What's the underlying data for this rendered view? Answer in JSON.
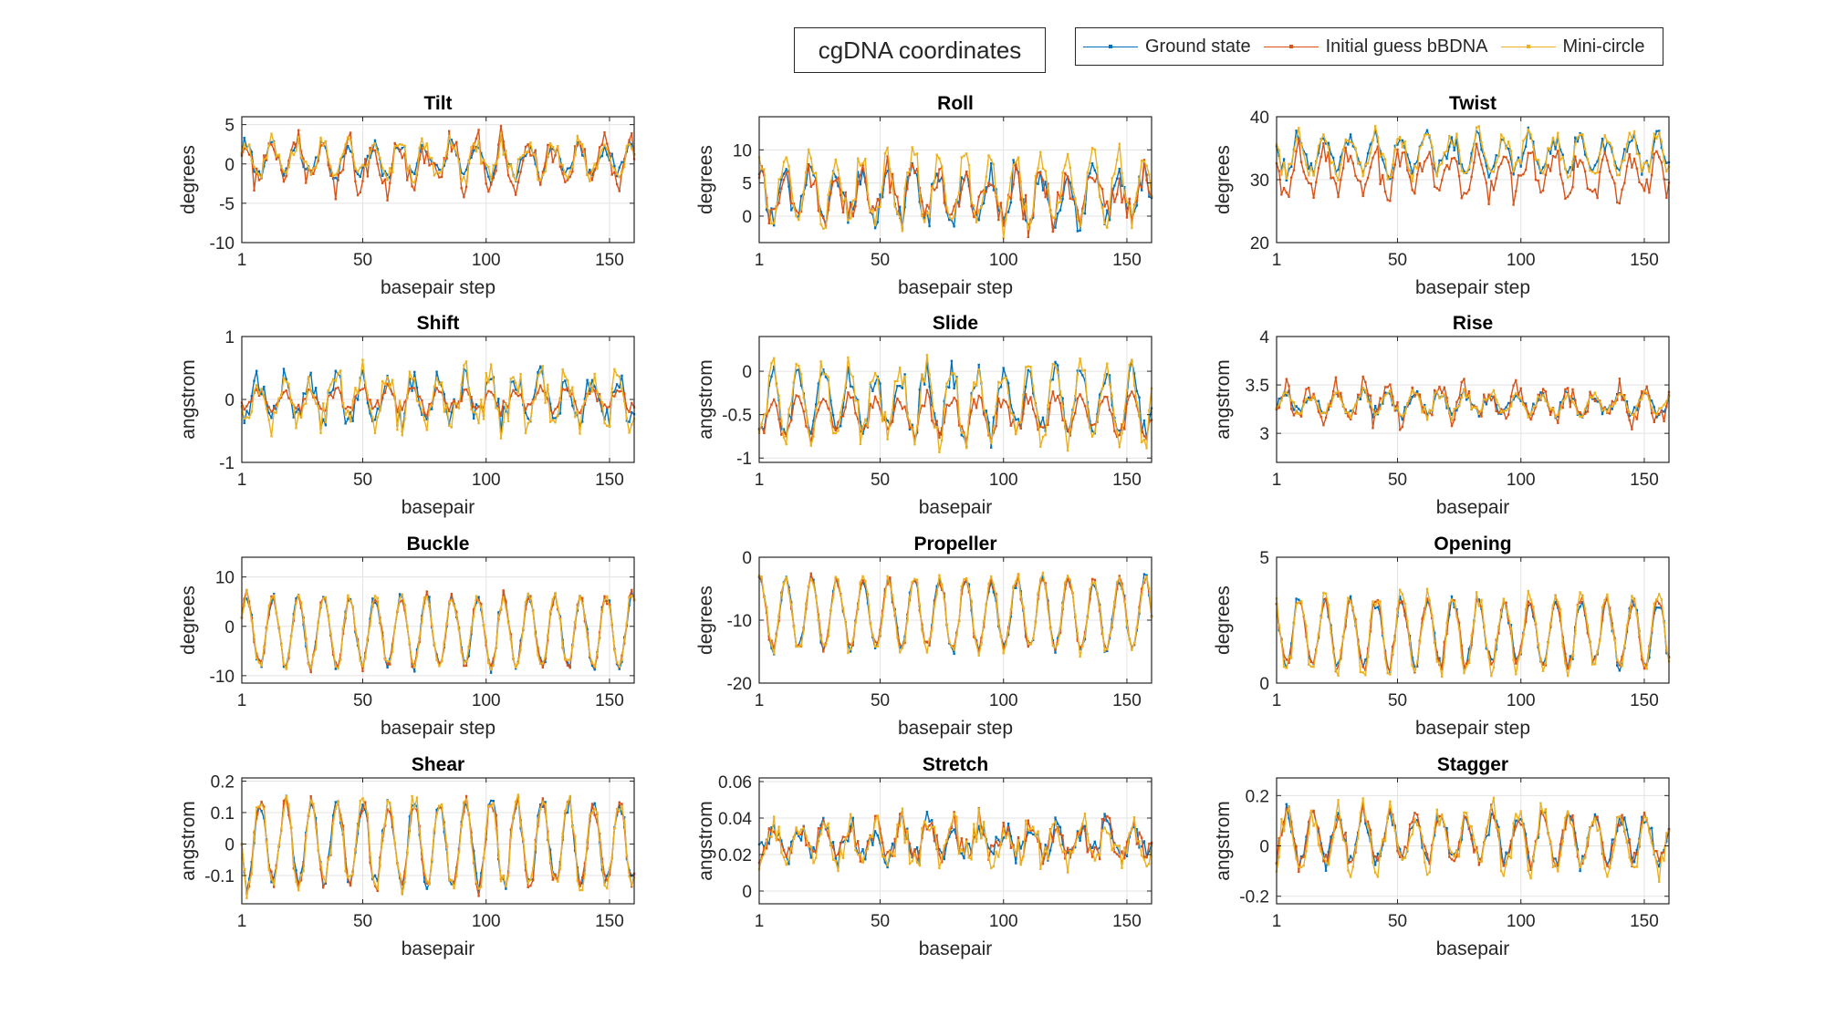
{
  "figure": {
    "title": "cgDNA coordinates",
    "legend": [
      {
        "label": "Ground state",
        "color": "#0072BD"
      },
      {
        "label": "Initial guess bBDNA",
        "color": "#D95319"
      },
      {
        "label": "Mini-circle",
        "color": "#EDB120"
      }
    ]
  },
  "chart_data": [
    {
      "type": "line",
      "title": "Tilt",
      "xlabel": "basepair step",
      "ylabel": "degrees",
      "xlim": [
        1,
        160
      ],
      "ylim": [
        -10,
        6
      ],
      "xticks": [
        1,
        50,
        100,
        150
      ],
      "yticks": [
        -10,
        -5,
        0,
        5
      ],
      "yticklabels": [
        "-10",
        "-5",
        "0",
        "5"
      ],
      "grid": true,
      "series": [
        {
          "name": "Ground state",
          "center": 0.5,
          "amp": 1.8,
          "period": 10.4,
          "noise": 1.0
        },
        {
          "name": "Initial guess bBDNA",
          "center": 0.0,
          "amp": 2.5,
          "period": 10.4,
          "noise": 2.0
        },
        {
          "name": "Mini-circle",
          "center": 0.5,
          "amp": 2.0,
          "period": 10.4,
          "noise": 1.2
        }
      ]
    },
    {
      "type": "line",
      "title": "Roll",
      "xlabel": "basepair step",
      "ylabel": "degrees",
      "xlim": [
        1,
        160
      ],
      "ylim": [
        -4,
        15
      ],
      "xticks": [
        1,
        50,
        100,
        150
      ],
      "yticks": [
        0,
        5,
        10
      ],
      "yticklabels": [
        "0",
        "5",
        "10"
      ],
      "grid": true,
      "series": [
        {
          "name": "Ground state",
          "center": 3.0,
          "amp": 3.5,
          "period": 10.4,
          "noise": 2.0
        },
        {
          "name": "Initial guess bBDNA",
          "center": 3.0,
          "amp": 3.0,
          "period": 10.4,
          "noise": 2.5
        },
        {
          "name": "Mini-circle",
          "center": 4.0,
          "amp": 5.0,
          "period": 10.4,
          "noise": 2.0
        }
      ]
    },
    {
      "type": "line",
      "title": "Twist",
      "xlabel": "basepair step",
      "ylabel": "degrees",
      "xlim": [
        1,
        160
      ],
      "ylim": [
        20,
        40
      ],
      "xticks": [
        1,
        50,
        100,
        150
      ],
      "yticks": [
        20,
        30,
        40
      ],
      "yticklabels": [
        "20",
        "30",
        "40"
      ],
      "grid": true,
      "series": [
        {
          "name": "Ground state",
          "center": 34.0,
          "amp": 2.5,
          "period": 10.4,
          "noise": 1.5
        },
        {
          "name": "Initial guess bBDNA",
          "center": 31.0,
          "amp": 3.0,
          "period": 10.4,
          "noise": 2.0
        },
        {
          "name": "Mini-circle",
          "center": 34.0,
          "amp": 3.0,
          "period": 10.4,
          "noise": 1.5
        }
      ]
    },
    {
      "type": "line",
      "title": "Shift",
      "xlabel": "basepair",
      "ylabel": "angstrom",
      "xlim": [
        1,
        160
      ],
      "ylim": [
        -1,
        1
      ],
      "xticks": [
        1,
        50,
        100,
        150
      ],
      "yticks": [
        -1,
        0,
        1
      ],
      "yticklabels": [
        "-1",
        "0",
        "1"
      ],
      "grid": true,
      "series": [
        {
          "name": "Ground state",
          "center": 0.0,
          "amp": 0.3,
          "period": 10.4,
          "noise": 0.2
        },
        {
          "name": "Initial guess bBDNA",
          "center": 0.0,
          "amp": 0.15,
          "period": 10.4,
          "noise": 0.1
        },
        {
          "name": "Mini-circle",
          "center": 0.0,
          "amp": 0.35,
          "period": 10.4,
          "noise": 0.25
        }
      ]
    },
    {
      "type": "line",
      "title": "Slide",
      "xlabel": "basepair",
      "ylabel": "angstrom",
      "xlim": [
        1,
        160
      ],
      "ylim": [
        -1.05,
        0.4
      ],
      "xticks": [
        1,
        50,
        100,
        150
      ],
      "yticks": [
        -1,
        -0.5,
        0
      ],
      "yticklabels": [
        "-1",
        "-0.5",
        "0"
      ],
      "grid": true,
      "series": [
        {
          "name": "Ground state",
          "center": -0.35,
          "amp": 0.35,
          "period": 10.4,
          "noise": 0.15
        },
        {
          "name": "Initial guess bBDNA",
          "center": -0.5,
          "amp": 0.2,
          "period": 10.4,
          "noise": 0.1
        },
        {
          "name": "Mini-circle",
          "center": -0.35,
          "amp": 0.4,
          "period": 10.4,
          "noise": 0.15
        }
      ]
    },
    {
      "type": "line",
      "title": "Rise",
      "xlabel": "basepair",
      "ylabel": "angstrom",
      "xlim": [
        1,
        160
      ],
      "ylim": [
        2.7,
        4
      ],
      "xticks": [
        1,
        50,
        100,
        150
      ],
      "yticks": [
        3,
        3.5,
        4
      ],
      "yticklabels": [
        "3",
        "3.5",
        "4"
      ],
      "grid": true,
      "series": [
        {
          "name": "Ground state",
          "center": 3.3,
          "amp": 0.1,
          "period": 10.4,
          "noise": 0.06
        },
        {
          "name": "Initial guess bBDNA",
          "center": 3.3,
          "amp": 0.15,
          "period": 10.4,
          "noise": 0.12
        },
        {
          "name": "Mini-circle",
          "center": 3.3,
          "amp": 0.1,
          "period": 10.4,
          "noise": 0.06
        }
      ]
    },
    {
      "type": "line",
      "title": "Buckle",
      "xlabel": "basepair step",
      "ylabel": "degrees",
      "xlim": [
        1,
        160
      ],
      "ylim": [
        -11.5,
        14
      ],
      "xticks": [
        1,
        50,
        100,
        150
      ],
      "yticks": [
        -10,
        0,
        10
      ],
      "yticklabels": [
        "-10",
        "0",
        "10"
      ],
      "grid": true,
      "series": [
        {
          "name": "Ground state",
          "center": -1.0,
          "amp": 7.0,
          "period": 10.4,
          "noise": 1.2
        },
        {
          "name": "Initial guess bBDNA",
          "center": -1.0,
          "amp": 7.0,
          "period": 10.4,
          "noise": 1.2
        },
        {
          "name": "Mini-circle",
          "center": -1.0,
          "amp": 7.2,
          "period": 10.4,
          "noise": 1.2
        }
      ]
    },
    {
      "type": "line",
      "title": "Propeller",
      "xlabel": "basepair step",
      "ylabel": "degrees",
      "xlim": [
        1,
        160
      ],
      "ylim": [
        -20,
        0
      ],
      "xticks": [
        1,
        50,
        100,
        150
      ],
      "yticks": [
        -20,
        -10,
        0
      ],
      "yticklabels": [
        "-20",
        "-10",
        "0"
      ],
      "grid": true,
      "series": [
        {
          "name": "Ground state",
          "center": -9.0,
          "amp": 5.5,
          "period": 10.4,
          "noise": 1.0
        },
        {
          "name": "Initial guess bBDNA",
          "center": -9.0,
          "amp": 5.5,
          "period": 10.4,
          "noise": 1.0
        },
        {
          "name": "Mini-circle",
          "center": -9.0,
          "amp": 5.7,
          "period": 10.4,
          "noise": 1.0
        }
      ]
    },
    {
      "type": "line",
      "title": "Opening",
      "xlabel": "basepair step",
      "ylabel": "degrees",
      "xlim": [
        1,
        160
      ],
      "ylim": [
        0,
        5
      ],
      "xticks": [
        1,
        50,
        100,
        150
      ],
      "yticks": [
        0,
        5
      ],
      "yticklabels": [
        "0",
        "5"
      ],
      "grid": true,
      "series": [
        {
          "name": "Ground state",
          "center": 2.0,
          "amp": 1.3,
          "period": 10.4,
          "noise": 0.3
        },
        {
          "name": "Initial guess bBDNA",
          "center": 2.0,
          "amp": 1.3,
          "period": 10.4,
          "noise": 0.3
        },
        {
          "name": "Mini-circle",
          "center": 2.0,
          "amp": 1.5,
          "period": 10.4,
          "noise": 0.4
        }
      ]
    },
    {
      "type": "line",
      "title": "Shear",
      "xlabel": "basepair",
      "ylabel": "angstrom",
      "xlim": [
        1,
        160
      ],
      "ylim": [
        -0.19,
        0.21
      ],
      "xticks": [
        1,
        50,
        100,
        150
      ],
      "yticks": [
        -0.1,
        0,
        0.1,
        0.2
      ],
      "yticklabels": [
        "-0.1",
        "0",
        "0.1",
        "0.2"
      ],
      "grid": true,
      "series": [
        {
          "name": "Ground state",
          "center": 0.0,
          "amp": 0.13,
          "period": 10.4,
          "noise": 0.03
        },
        {
          "name": "Initial guess bBDNA",
          "center": 0.0,
          "amp": 0.13,
          "period": 10.4,
          "noise": 0.03
        },
        {
          "name": "Mini-circle",
          "center": 0.0,
          "amp": 0.14,
          "period": 10.4,
          "noise": 0.03
        }
      ]
    },
    {
      "type": "line",
      "title": "Stretch",
      "xlabel": "basepair",
      "ylabel": "angstrom",
      "xlim": [
        1,
        160
      ],
      "ylim": [
        -0.007,
        0.062
      ],
      "xticks": [
        1,
        50,
        100,
        150
      ],
      "yticks": [
        0,
        0.02,
        0.04,
        0.06
      ],
      "yticklabels": [
        "0",
        "0.02",
        "0.04",
        "0.06"
      ],
      "grid": true,
      "series": [
        {
          "name": "Ground state",
          "center": 0.027,
          "amp": 0.008,
          "period": 10.4,
          "noise": 0.007
        },
        {
          "name": "Initial guess bBDNA",
          "center": 0.028,
          "amp": 0.008,
          "period": 10.4,
          "noise": 0.007
        },
        {
          "name": "Mini-circle",
          "center": 0.027,
          "amp": 0.01,
          "period": 10.4,
          "noise": 0.008
        }
      ]
    },
    {
      "type": "line",
      "title": "Stagger",
      "xlabel": "basepair",
      "ylabel": "angstrom",
      "xlim": [
        1,
        160
      ],
      "ylim": [
        -0.23,
        0.27
      ],
      "xticks": [
        1,
        50,
        100,
        150
      ],
      "yticks": [
        -0.2,
        0,
        0.2
      ],
      "yticklabels": [
        "-0.2",
        "0",
        "0.2"
      ],
      "grid": true,
      "series": [
        {
          "name": "Ground state",
          "center": 0.03,
          "amp": 0.09,
          "period": 10.4,
          "noise": 0.04
        },
        {
          "name": "Initial guess bBDNA",
          "center": 0.03,
          "amp": 0.09,
          "period": 10.4,
          "noise": 0.04
        },
        {
          "name": "Mini-circle",
          "center": 0.02,
          "amp": 0.11,
          "period": 10.4,
          "noise": 0.05
        }
      ]
    }
  ]
}
